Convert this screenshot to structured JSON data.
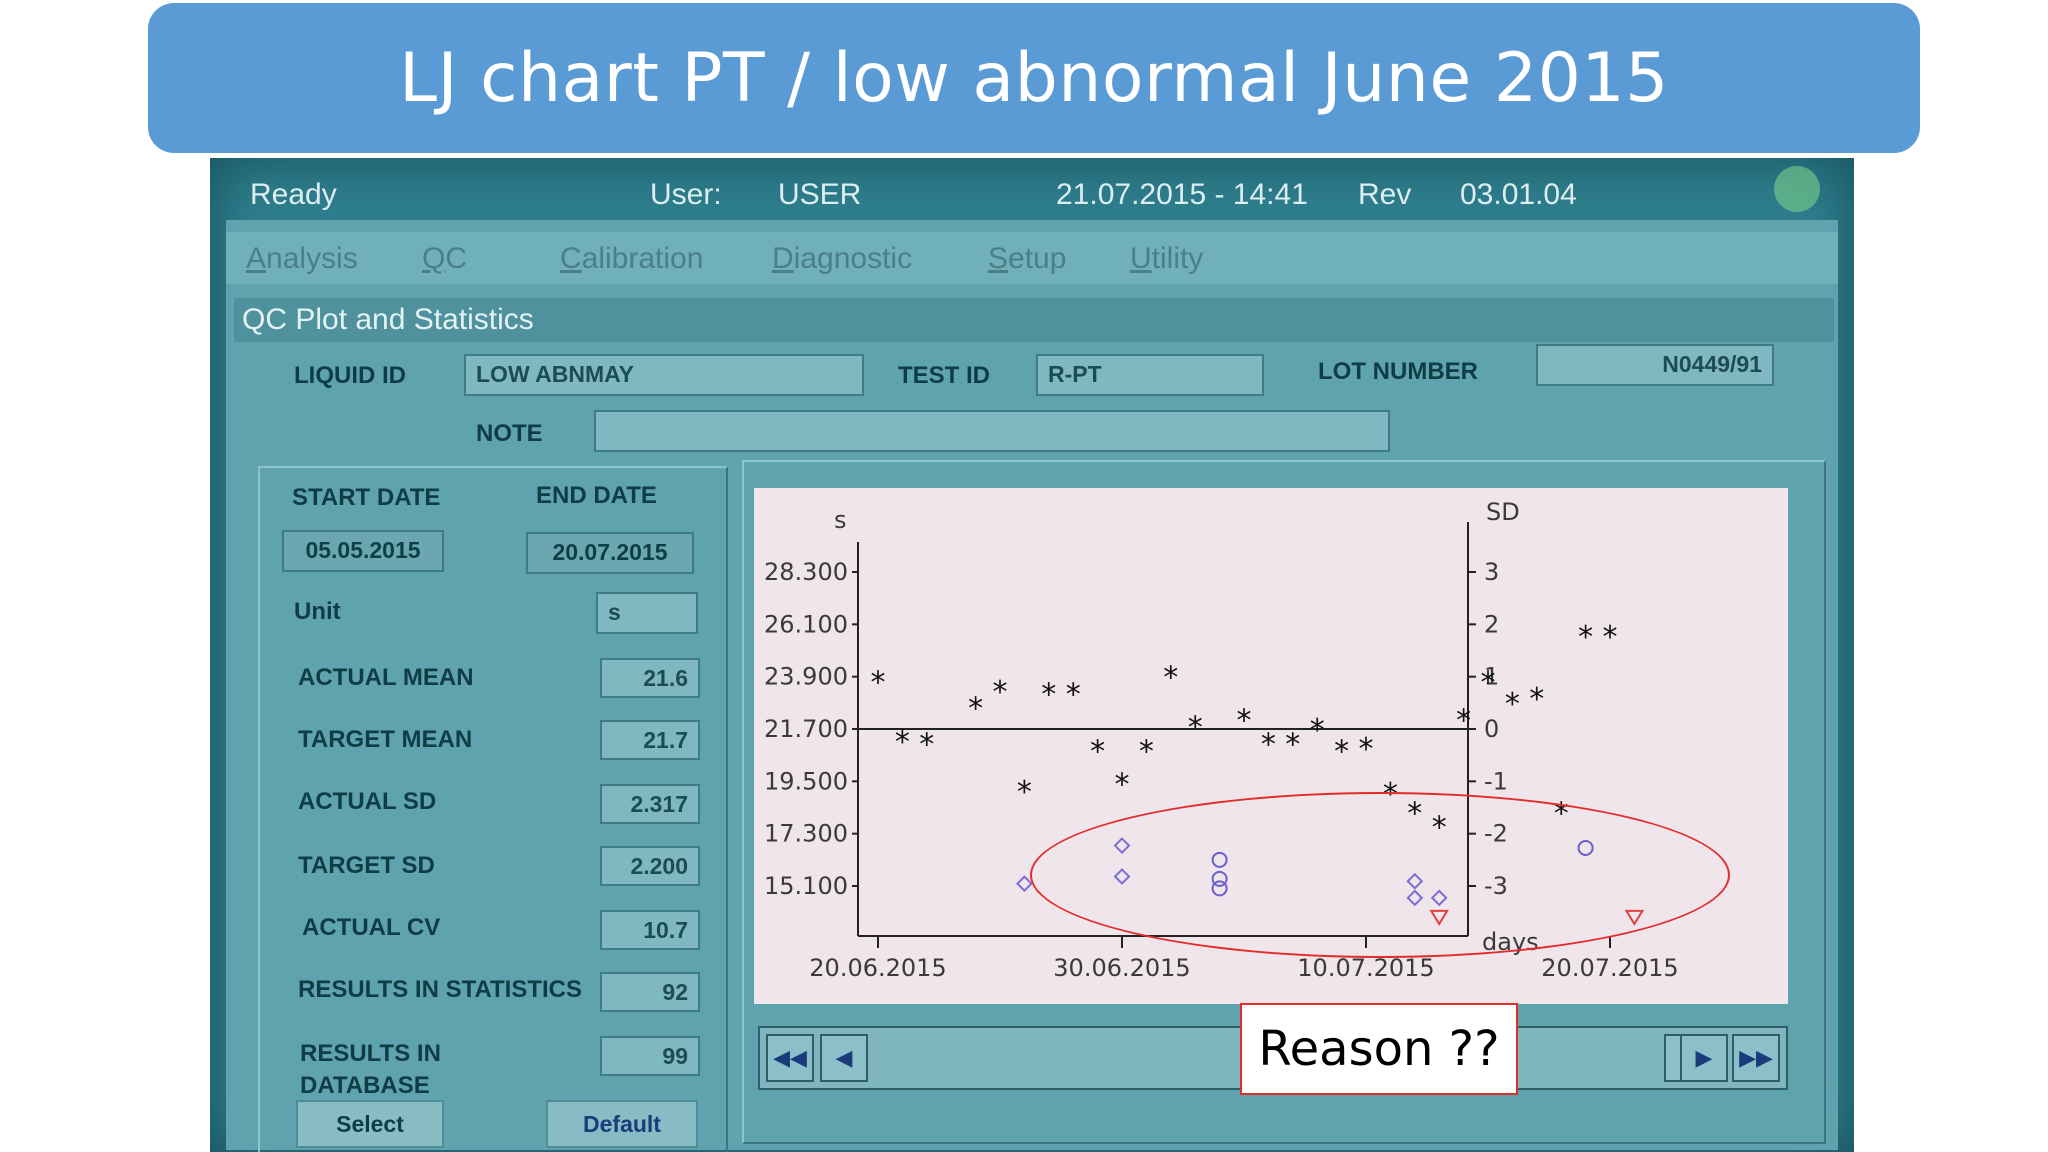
{
  "slide_title": "LJ chart PT / low abnormal June 2015",
  "status_bar": {
    "state": "Ready",
    "user_label": "User:",
    "user_value": "USER",
    "datetime": "21.07.2015 - 14:41",
    "rev_label": "Rev",
    "rev_value": "03.01.04"
  },
  "menu": [
    "Analysis",
    "QC",
    "Calibration",
    "Diagnostic",
    "Setup",
    "Utility"
  ],
  "section_title": "QC Plot and Statistics",
  "header_fields": {
    "liquid_id_label": "LIQUID ID",
    "liquid_id_value": "LOW ABNMAY",
    "test_id_label": "TEST ID",
    "test_id_value": "R-PT",
    "lot_number_label": "LOT NUMBER",
    "lot_number_value": "N0449/91",
    "note_label": "NOTE",
    "note_value": ""
  },
  "stats": {
    "start_date_label": "START DATE",
    "start_date": "05.05.2015",
    "end_date_label": "END DATE",
    "end_date": "20.07.2015",
    "unit_label": "Unit",
    "unit": "s",
    "rows": [
      {
        "label": "ACTUAL MEAN",
        "value": "21.6"
      },
      {
        "label": "TARGET MEAN",
        "value": "21.7"
      },
      {
        "label": "ACTUAL SD",
        "value": "2.317"
      },
      {
        "label": "TARGET SD",
        "value": "2.200"
      },
      {
        "label": "ACTUAL CV",
        "value": "10.7"
      },
      {
        "label": "RESULTS IN STATISTICS",
        "value": "92"
      }
    ],
    "db_label_line1": "RESULTS IN",
    "db_label_line2": "DATABASE",
    "db_value": "99",
    "select_label": "Select",
    "default_label": "Default"
  },
  "chart_data": {
    "type": "scatter",
    "left_unit": "s",
    "right_unit": "SD",
    "x_unit": "days",
    "y_ticks": [
      "28.300",
      "26.100",
      "23.900",
      "21.700",
      "19.500",
      "17.300",
      "15.100"
    ],
    "sd_ticks": [
      "3",
      "2",
      "1",
      "0",
      "-1",
      "-2",
      "-3"
    ],
    "x_ticks": [
      "20.06.2015",
      "30.06.2015",
      "10.07.2015",
      "20.07.2015"
    ],
    "mean": 21.7,
    "sd": 2.2,
    "series": [
      {
        "marker": "star",
        "color": "#111111",
        "points": [
          [
            0,
            23.7
          ],
          [
            1,
            21.2
          ],
          [
            2,
            21.1
          ],
          [
            4,
            22.6
          ],
          [
            5,
            23.3
          ],
          [
            6,
            19.1
          ],
          [
            7,
            23.2
          ],
          [
            8,
            23.2
          ],
          [
            9,
            20.8
          ],
          [
            10,
            19.4
          ],
          [
            11,
            20.8
          ],
          [
            12,
            23.9
          ],
          [
            13,
            21.8
          ],
          [
            15,
            22.1
          ],
          [
            16,
            21.1
          ],
          [
            17,
            21.1
          ],
          [
            18,
            21.7
          ],
          [
            19,
            20.8
          ],
          [
            20,
            20.9
          ],
          [
            21,
            19.0
          ],
          [
            22,
            18.2
          ],
          [
            23,
            17.6
          ],
          [
            24,
            22.1
          ],
          [
            25,
            23.7
          ],
          [
            26,
            22.8
          ],
          [
            27,
            23.0
          ],
          [
            28,
            18.2
          ],
          [
            29,
            25.6
          ],
          [
            30,
            25.6
          ]
        ]
      },
      {
        "marker": "diamond",
        "color": "#7b6fd6",
        "points": [
          [
            6,
            15.2
          ],
          [
            10,
            16.8
          ],
          [
            10,
            15.5
          ],
          [
            22,
            15.3
          ],
          [
            22,
            14.6
          ],
          [
            23,
            14.6
          ]
        ]
      },
      {
        "marker": "circle",
        "color": "#6a5fd0",
        "points": [
          [
            14,
            16.2
          ],
          [
            14,
            15.4
          ],
          [
            14,
            15.0
          ],
          [
            29,
            16.7
          ]
        ]
      },
      {
        "marker": "triangle",
        "color": "#e34040",
        "points": [
          [
            23,
            13.8
          ],
          [
            31,
            13.8
          ]
        ]
      }
    ]
  },
  "annotation": "Reason ??"
}
